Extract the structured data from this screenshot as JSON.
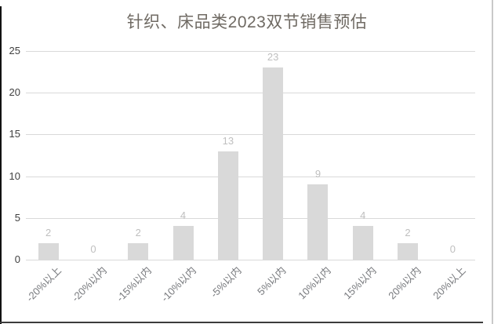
{
  "chart_data": {
    "type": "bar",
    "title": "针织、床品类2023双节销售预估",
    "categories": [
      "-20%以上",
      "-20%以内",
      "-15%以内",
      "-10%以内",
      "-5%以内",
      "5%以内",
      "10%以内",
      "15%以内",
      "20%以内",
      "20%以上"
    ],
    "values": [
      2,
      0,
      2,
      4,
      13,
      23,
      9,
      4,
      2,
      0
    ],
    "y_ticks": [
      0,
      5,
      10,
      15,
      20,
      25
    ],
    "ylim": [
      0,
      25
    ],
    "xlabel": "",
    "ylabel": "",
    "grid": true,
    "legend_position": "none",
    "data_labels_shown": true
  },
  "colors": {
    "bar_fill": "#d9d9d9",
    "gridline": "#d9d9d9",
    "title_text": "#6f6a63",
    "y_axis_text": "#404040",
    "category_text": "#787a7e",
    "data_label_text": "#bfbfbf",
    "border_dark": "#121212",
    "border_light": "#c9c9c9",
    "background": "#ffffff"
  }
}
